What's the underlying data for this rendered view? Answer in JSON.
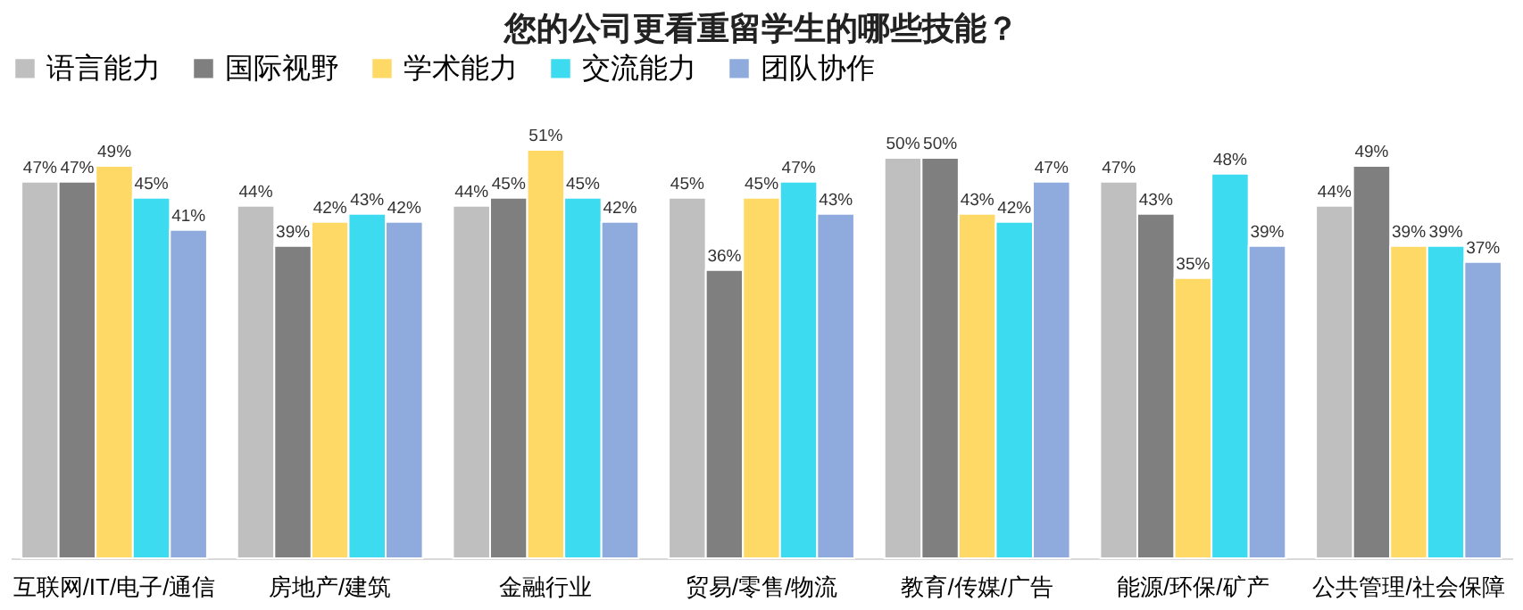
{
  "chart_data": {
    "type": "bar",
    "title": "您的公司更看重留学生的哪些技能？",
    "categories": [
      "互联网/IT/电子/通信",
      "房地产/建筑",
      "金融行业",
      "贸易/零售/物流",
      "教育/传媒/广告",
      "能源/环保/矿产",
      "公共管理/社会保障"
    ],
    "series": [
      {
        "name": "语言能力",
        "color": "#bfbfbf",
        "values": [
          47,
          44,
          44,
          45,
          50,
          47,
          44
        ],
        "value_labels": [
          "47%",
          "44%",
          "44%",
          "45%",
          "50%",
          "47%",
          "44%"
        ]
      },
      {
        "name": "国际视野",
        "color": "#7f7f7f",
        "values": [
          47,
          39,
          45,
          36,
          50,
          43,
          49
        ],
        "value_labels": [
          "47%",
          "39%",
          "45%",
          "36%",
          "50%",
          "43%",
          "49%"
        ]
      },
      {
        "name": "学术能力",
        "color": "#ffd966",
        "values": [
          49,
          42,
          51,
          45,
          43,
          35,
          39
        ],
        "value_labels": [
          "49%",
          "42%",
          "51%",
          "45%",
          "43%",
          "35%",
          "39%"
        ]
      },
      {
        "name": "交流能力",
        "color": "#3cdbf0",
        "values": [
          45,
          43,
          45,
          47,
          42,
          48,
          39
        ],
        "value_labels": [
          "45%",
          "43%",
          "45%",
          "47%",
          "42%",
          "48%",
          "39%"
        ]
      },
      {
        "name": "团队协作",
        "color": "#8faadc",
        "values": [
          41,
          42,
          42,
          43,
          47,
          39,
          37
        ],
        "value_labels": [
          "41%",
          "42%",
          "42%",
          "43%",
          "47%",
          "39%",
          "37%"
        ]
      }
    ],
    "tick_labels": "x",
    "grid": false,
    "legend": "top"
  }
}
